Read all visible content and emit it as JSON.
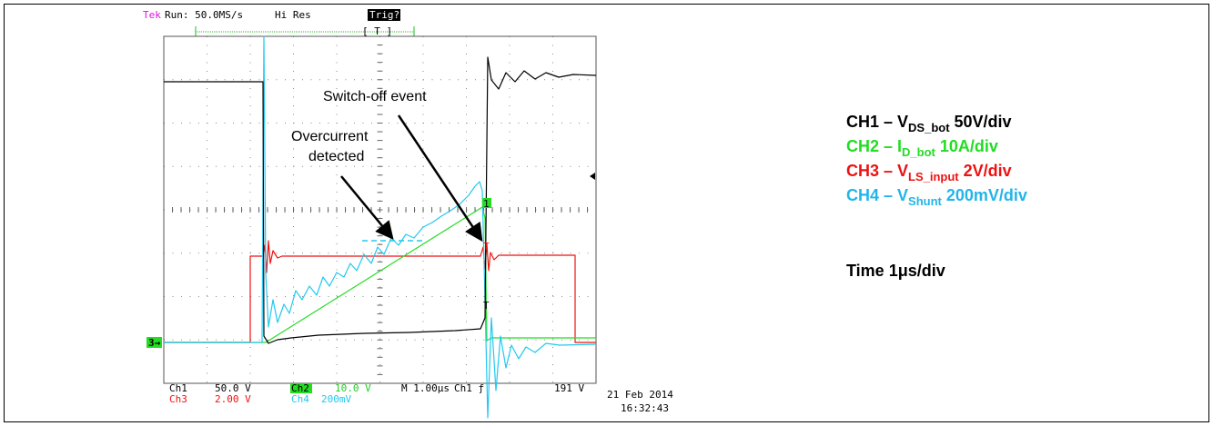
{
  "header": {
    "tek": "Tek",
    "run": "Run: 50.0MS/s",
    "mode": "Hi Res",
    "trig": "Trig?"
  },
  "readout": {
    "ch1": "Ch1",
    "ch1_scale": "50.0 V",
    "ch2": "Ch2",
    "ch2_scale": "10.0 V",
    "timebase": "M 1.00µs",
    "trigger": "Ch1 ƒ",
    "trigger_level": "191 V",
    "ch3": "Ch3",
    "ch3_scale": "2.00 V",
    "ch4": "Ch4",
    "ch4_scale": "200mV",
    "date": "21 Feb 2014",
    "time": "16:32:43"
  },
  "annotations": {
    "switch_off": "Switch-off event",
    "overcurrent_1": "Overcurrent",
    "overcurrent_2": "detected"
  },
  "legend": [
    {
      "prefix": "CH1 – V",
      "sub": "DS_bot",
      "suffix": "50V/div",
      "color": "#000000"
    },
    {
      "prefix": "CH2 – I",
      "sub": "D_bot",
      "suffix": "10A/div",
      "color": "#22dd22"
    },
    {
      "prefix": "CH3 – V",
      "sub": "LS_input",
      "suffix": "2V/div",
      "color": "#ee1111"
    },
    {
      "prefix": "CH4 – V",
      "sub": "Shunt",
      "suffix": "200mV/div",
      "color": "#22b5ea"
    }
  ],
  "timebase_note": "Time 1μs/div"
}
